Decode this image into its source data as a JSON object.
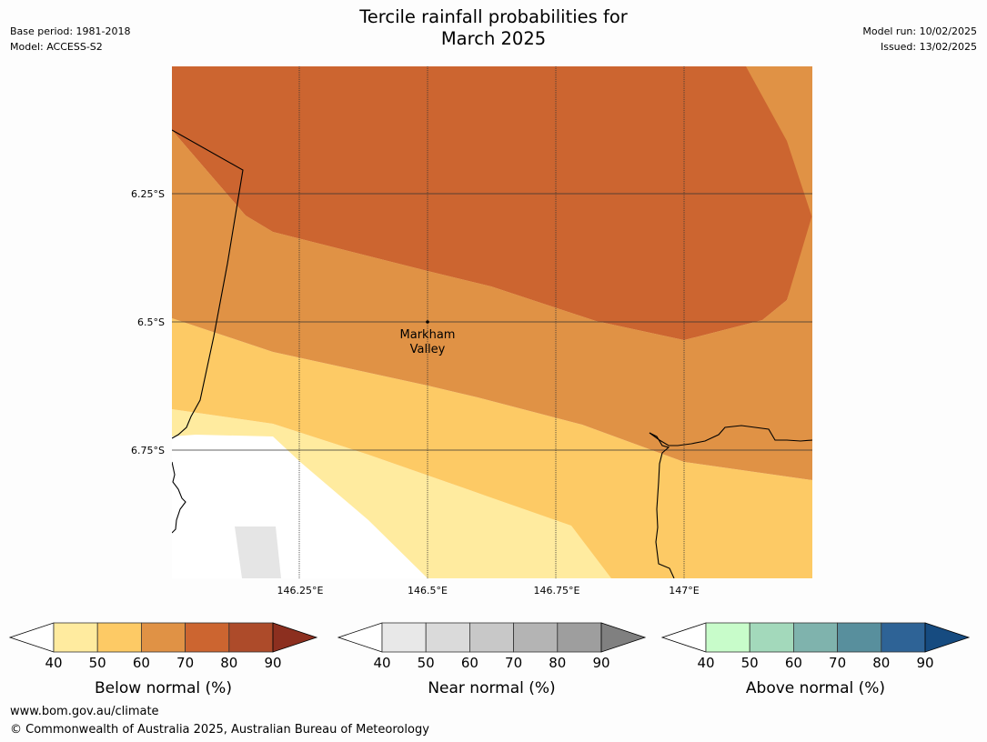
{
  "title": {
    "line1": "Tercile rainfall probabilities for",
    "line2": "March 2025"
  },
  "meta_left": {
    "base_period": "Base period: 1981-2018",
    "model": "Model: ACCESS-S2"
  },
  "meta_right": {
    "model_run": "Model run: 10/02/2025",
    "issued": "Issued: 13/02/2025"
  },
  "map": {
    "lat_labels": [
      "6.25°S",
      "6.5°S",
      "6.75°S"
    ],
    "lon_labels": [
      "146.25°E",
      "146.5°E",
      "146.75°E",
      "147°E"
    ],
    "place": {
      "line1": "Markham",
      "line2": "Valley"
    }
  },
  "colorbars": [
    {
      "label": "Below normal (%)",
      "ticks": [
        "40",
        "50",
        "60",
        "70",
        "80",
        "90"
      ],
      "colors": [
        "#ffeb9f",
        "#fdca65",
        "#e09245",
        "#cc6530",
        "#ad4b2a",
        "#8c2f1f"
      ]
    },
    {
      "label": "Near normal (%)",
      "ticks": [
        "40",
        "50",
        "60",
        "70",
        "80",
        "90"
      ],
      "colors": [
        "#e8e8e8",
        "#dadada",
        "#c8c8c8",
        "#b4b4b4",
        "#9e9e9e",
        "#808080"
      ]
    },
    {
      "label": "Above normal (%)",
      "ticks": [
        "40",
        "50",
        "60",
        "70",
        "80",
        "90"
      ],
      "colors": [
        "#c8fcca",
        "#a3d9bb",
        "#7fb3ad",
        "#588f9d",
        "#2e6396",
        "#164b80"
      ]
    }
  ],
  "footer": {
    "url": "www.bom.gov.au/climate",
    "copyright": "© Commonwealth of Australia 2025, Australian Bureau of Meteorology"
  }
}
